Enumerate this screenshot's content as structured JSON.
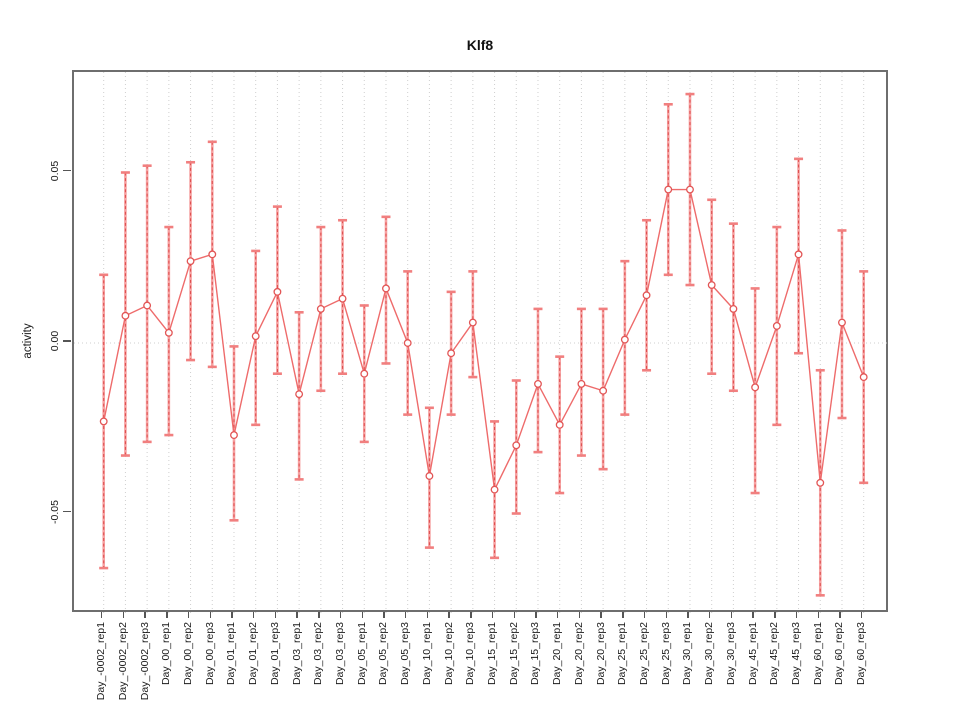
{
  "chart": {
    "title": "Klf8",
    "ylabel": "activity"
  },
  "chart_data": {
    "type": "line",
    "title": "Klf8",
    "xlabel": "",
    "ylabel": "activity",
    "ylim": [
      -0.0795,
      0.0795
    ],
    "yticks": [
      {
        "label": "0.05",
        "value": 0.05
      },
      {
        "label": "0.00",
        "value": 0.0
      },
      {
        "label": "-0.05",
        "value": -0.05
      }
    ],
    "grid": "vertical dotted gridline at every category; dotted horizontal line at 0.00",
    "legend_position": "none",
    "marker": "open-circle",
    "colors": {
      "line": "#ee6b6b",
      "marker_stroke": "#e25555",
      "error_bar": "#f6a2a2",
      "error_bar_dash": "#dd4b4b",
      "error_cap": "#f17f7f",
      "gridline": "#cfcfcf",
      "axis_box": "#6e6e6e",
      "tick": "#555555"
    },
    "categories": [
      "Day_-0002_rep1",
      "Day_-0002_rep2",
      "Day_-0002_rep3",
      "Day_00_rep1",
      "Day_00_rep2",
      "Day_00_rep3",
      "Day_01_rep1",
      "Day_01_rep2",
      "Day_01_rep3",
      "Day_03_rep1",
      "Day_03_rep2",
      "Day_03_rep3",
      "Day_05_rep1",
      "Day_05_rep2",
      "Day_05_rep3",
      "Day_10_rep1",
      "Day_10_rep2",
      "Day_10_rep3",
      "Day_15_rep1",
      "Day_15_rep2",
      "Day_15_rep3",
      "Day_20_rep1",
      "Day_20_rep2",
      "Day_20_rep3",
      "Day_25_rep1",
      "Day_25_rep2",
      "Day_25_rep3",
      "Day_30_rep1",
      "Day_30_rep2",
      "Day_30_rep3",
      "Day_45_rep1",
      "Day_45_rep2",
      "Day_45_rep3",
      "Day_60_rep1",
      "Day_60_rep2",
      "Day_60_rep3"
    ],
    "values": [
      -0.023,
      0.008,
      0.011,
      0.003,
      0.024,
      0.026,
      -0.027,
      0.002,
      0.015,
      -0.015,
      0.01,
      0.013,
      -0.009,
      0.016,
      0.0,
      -0.039,
      -0.003,
      0.006,
      -0.043,
      -0.03,
      -0.012,
      -0.024,
      -0.012,
      -0.014,
      0.001,
      0.014,
      0.045,
      0.045,
      0.017,
      0.01,
      -0.013,
      0.005,
      0.026,
      -0.041,
      0.006,
      -0.01
    ],
    "error_high": [
      0.02,
      0.05,
      0.052,
      0.034,
      0.053,
      0.059,
      -0.001,
      0.027,
      0.04,
      0.009,
      0.034,
      0.036,
      0.011,
      0.037,
      0.021,
      -0.019,
      0.015,
      0.021,
      -0.023,
      -0.011,
      0.01,
      -0.004,
      0.01,
      0.01,
      0.024,
      0.036,
      0.07,
      0.073,
      0.042,
      0.035,
      0.016,
      0.034,
      0.054,
      -0.008,
      0.033,
      0.021
    ],
    "error_low": [
      -0.066,
      -0.033,
      -0.029,
      -0.027,
      -0.005,
      -0.007,
      -0.052,
      -0.024,
      -0.009,
      -0.04,
      -0.014,
      -0.009,
      -0.029,
      -0.006,
      -0.021,
      -0.06,
      -0.021,
      -0.01,
      -0.063,
      -0.05,
      -0.032,
      -0.044,
      -0.033,
      -0.037,
      -0.021,
      -0.008,
      0.02,
      0.017,
      -0.009,
      -0.014,
      -0.044,
      -0.024,
      -0.003,
      -0.074,
      -0.022,
      -0.041
    ]
  }
}
